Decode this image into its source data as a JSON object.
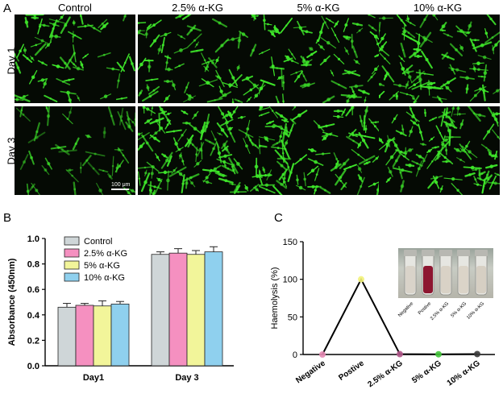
{
  "panel_a": {
    "letter": "A",
    "columns": [
      "Control",
      "2.5% α-KG",
      "5% α-KG",
      "10% α-KG"
    ],
    "rows": [
      "Day 1",
      "Day 3"
    ],
    "scale_bar": "100 μm"
  },
  "panel_b": {
    "letter": "B"
  },
  "panel_c": {
    "letter": "C"
  },
  "inset": {
    "labels": [
      "Negative",
      "Postive",
      "2.5% α-KG",
      "5% α-KG",
      "10% α-KG"
    ]
  },
  "colors": {
    "cell_green": "#3ee62a",
    "bar_control": "#cfd6d8",
    "bar_2_5": "#f590c0",
    "bar_5": "#f2f59a",
    "bar_10": "#8fd0ee"
  },
  "chart_data": [
    {
      "type": "bar",
      "panel": "B",
      "categories": [
        "Day1",
        "Day 3"
      ],
      "ylabel": "Absorbance (450nm)",
      "xlabel": "",
      "ylim": [
        0.0,
        1.0
      ],
      "yticks": [
        "0.0",
        "0.2",
        "0.4",
        "0.6",
        "0.8",
        "1.0"
      ],
      "legend_position": "top-left",
      "series": [
        {
          "name": "Control",
          "values": [
            0.46,
            0.875
          ],
          "errors": [
            0.03,
            0.02
          ],
          "color": "#cfd6d8"
        },
        {
          "name": "2.5% α-KG",
          "values": [
            0.475,
            0.885
          ],
          "errors": [
            0.015,
            0.035
          ],
          "color": "#f590c0"
        },
        {
          "name": "5% α-KG",
          "values": [
            0.47,
            0.875
          ],
          "errors": [
            0.04,
            0.03
          ],
          "color": "#f2f59a"
        },
        {
          "name": "10% α-KG",
          "values": [
            0.485,
            0.895
          ],
          "errors": [
            0.02,
            0.04
          ],
          "color": "#8fd0ee"
        }
      ]
    },
    {
      "type": "line",
      "panel": "C",
      "categories": [
        "Negative",
        "Postive",
        "2.5% α-KG",
        "5% α-KG",
        "10% α-KG"
      ],
      "values": [
        0,
        100,
        0.5,
        0.3,
        0.6
      ],
      "marker_colors": [
        "#e58ab4",
        "#f2f27a",
        "#b0578a",
        "#43c43a",
        "#3a3a3a"
      ],
      "ylabel": "Haemolysis (%)",
      "xlabel": "",
      "ylim": [
        0,
        150
      ],
      "yticks": [
        "0",
        "50",
        "100",
        "150"
      ]
    }
  ]
}
